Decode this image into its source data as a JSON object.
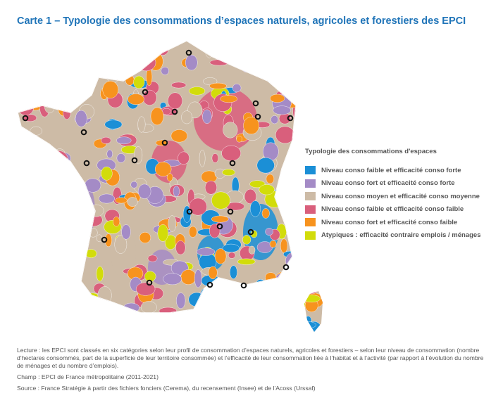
{
  "title": "Carte 1 – Typologie des consommations d’espaces naturels, agricoles et forestiers des EPCI",
  "legend": {
    "title": "Typologie des consommations d'espaces",
    "items": [
      {
        "label": "Niveau conso faible et efficacité conso forte",
        "color": "#1b8fd6"
      },
      {
        "label": "Niveau conso fort et efficacité conso forte",
        "color": "#a48bc6"
      },
      {
        "label": "Niveau conso moyen et efficacité conso moyenne",
        "color": "#cdbba6"
      },
      {
        "label": "Niveau conso faible et efficacité conso faible",
        "color": "#d95f7c"
      },
      {
        "label": "Niveau conso fort et efficacité conso faible",
        "color": "#f7931e"
      },
      {
        "label": "Atypiques : efficacité contraire emplois / ménages",
        "color": "#d2dc0a"
      }
    ]
  },
  "notes": {
    "lecture": "Lecture : les EPCI sont classés en six catégories selon leur profil de consommation d’espaces naturels, agricoles et forestiers – selon leur niveau de consommation (nombre d’hectares consommés, part de la superficie de leur territoire consommée) et l’efficacité de leur consommation liée à l’habitat et à l’activité (par rapport à l’évolution du nombre de ménages et du nombre d’emplois).",
    "champ": "Champ : EPCI de France métropolitaine (2011-2021)",
    "source": "Source : France Stratégie à partir des fichiers fonciers (Cerema), du recensement (Insee) et de l’Acoss (Urssaf)"
  }
}
